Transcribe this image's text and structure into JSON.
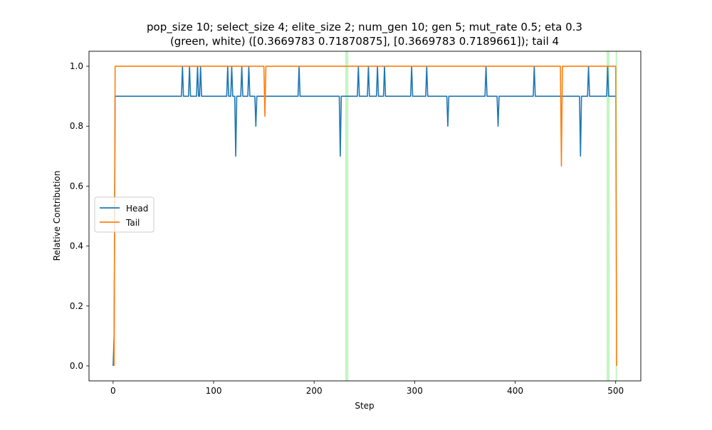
{
  "chart_data": {
    "type": "line",
    "title_line1": "pop_size 10; select_size 4; elite_size 2; num_gen 10; gen 5; mut_rate 0.5; eta 0.3",
    "title_line2": "(green, white) ([0.3669783  0.71870875], [0.3669783 0.7189661]); tail 4",
    "xlabel": "Step",
    "ylabel": "Relative Contribution",
    "xlim": [
      -24,
      525
    ],
    "ylim": [
      -0.05,
      1.05
    ],
    "xticks": [
      0,
      100,
      200,
      300,
      400,
      500
    ],
    "xtick_labels": [
      "0",
      "100",
      "200",
      "300",
      "400",
      "500"
    ],
    "yticks": [
      0.0,
      0.2,
      0.4,
      0.6,
      0.8,
      1.0
    ],
    "ytick_labels": [
      "0.0",
      "0.2",
      "0.4",
      "0.6",
      "0.8",
      "1.0"
    ],
    "grid": false,
    "legend_position": "center-left",
    "highlight_color": "#90ee90",
    "highlight_bands": [
      [
        231,
        234
      ],
      [
        491,
        494
      ],
      [
        500,
        501
      ]
    ],
    "series": [
      {
        "name": "Head",
        "color": "#1f77b4",
        "points": [
          [
            0,
            0
          ],
          [
            1,
            0.1
          ],
          [
            2,
            0.9
          ],
          [
            68,
            0.9
          ],
          [
            69,
            1.0
          ],
          [
            70,
            0.9
          ],
          [
            75,
            0.9
          ],
          [
            76,
            1.0
          ],
          [
            77,
            0.9
          ],
          [
            83,
            0.9
          ],
          [
            84,
            1.0
          ],
          [
            85,
            0.9
          ],
          [
            86,
            0.9
          ],
          [
            87,
            1.0
          ],
          [
            88,
            0.9
          ],
          [
            113,
            0.9
          ],
          [
            114,
            1.0
          ],
          [
            115,
            0.9
          ],
          [
            117,
            0.9
          ],
          [
            118,
            1.0
          ],
          [
            119,
            0.9
          ],
          [
            121,
            0.9
          ],
          [
            122,
            0.7
          ],
          [
            123,
            0.9
          ],
          [
            127,
            0.9
          ],
          [
            128,
            1.0
          ],
          [
            129,
            0.9
          ],
          [
            134,
            0.9
          ],
          [
            135,
            1.0
          ],
          [
            136,
            0.9
          ],
          [
            141,
            0.9
          ],
          [
            142,
            0.8
          ],
          [
            143,
            0.9
          ],
          [
            184,
            0.9
          ],
          [
            185,
            1.0
          ],
          [
            186,
            0.9
          ],
          [
            225,
            0.9
          ],
          [
            226,
            0.7
          ],
          [
            227,
            0.9
          ],
          [
            243,
            0.9
          ],
          [
            244,
            1.0
          ],
          [
            245,
            0.9
          ],
          [
            253,
            0.9
          ],
          [
            254,
            1.0
          ],
          [
            255,
            0.9
          ],
          [
            262,
            0.9
          ],
          [
            263,
            1.0
          ],
          [
            264,
            0.9
          ],
          [
            269,
            0.9
          ],
          [
            270,
            1.0
          ],
          [
            271,
            0.9
          ],
          [
            296,
            0.9
          ],
          [
            297,
            1.0
          ],
          [
            298,
            0.9
          ],
          [
            311,
            0.9
          ],
          [
            312,
            1.0
          ],
          [
            313,
            0.9
          ],
          [
            332,
            0.9
          ],
          [
            333,
            0.8
          ],
          [
            334,
            0.9
          ],
          [
            370,
            0.9
          ],
          [
            371,
            1.0
          ],
          [
            372,
            0.9
          ],
          [
            382,
            0.9
          ],
          [
            383,
            0.8
          ],
          [
            384,
            0.9
          ],
          [
            418,
            0.9
          ],
          [
            419,
            1.0
          ],
          [
            420,
            0.9
          ],
          [
            464,
            0.9
          ],
          [
            465,
            0.7
          ],
          [
            466,
            0.9
          ],
          [
            472,
            0.9
          ],
          [
            473,
            1.0
          ],
          [
            474,
            0.9
          ],
          [
            491,
            0.9
          ],
          [
            492,
            1.0
          ],
          [
            493,
            0.9
          ],
          [
            500,
            0.9
          ]
        ]
      },
      {
        "name": "Tail",
        "color": "#ff7f0e",
        "points": [
          [
            1,
            0
          ],
          [
            2,
            1.0
          ],
          [
            150,
            1.0
          ],
          [
            151,
            0.833
          ],
          [
            152,
            1.0
          ],
          [
            445,
            1.0
          ],
          [
            446,
            0.667
          ],
          [
            447,
            1.0
          ],
          [
            500,
            1.0
          ],
          [
            501,
            0
          ]
        ]
      }
    ]
  }
}
